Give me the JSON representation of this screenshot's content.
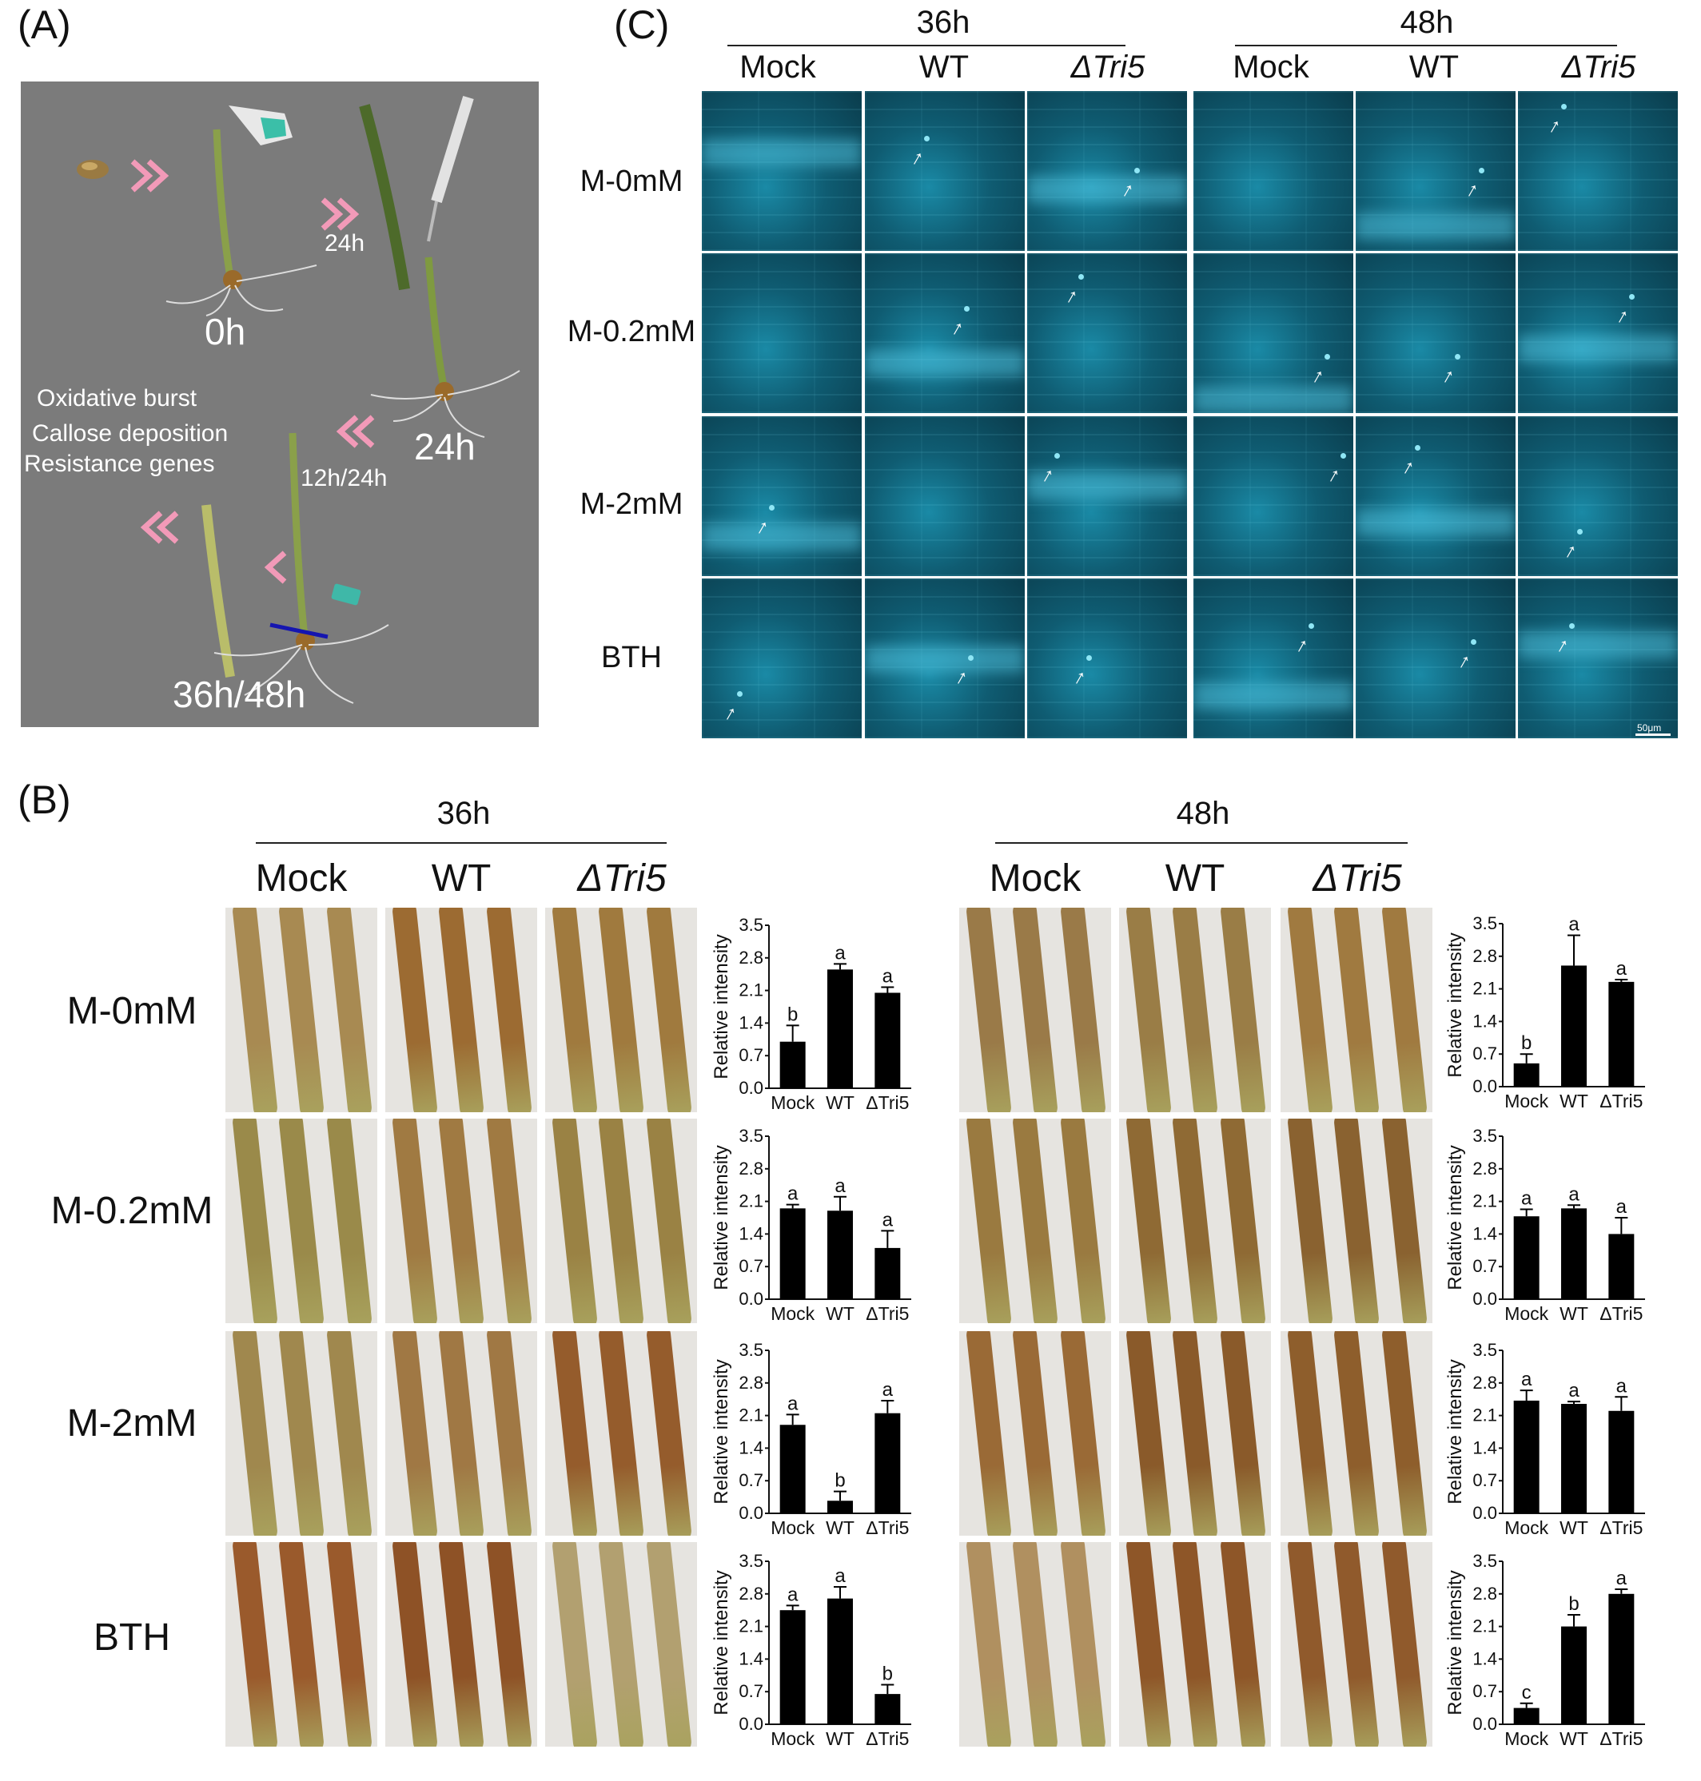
{
  "panel_labels": {
    "a": "(A)",
    "b": "(B)",
    "c": "(C)"
  },
  "panel_a": {
    "times": [
      "0h",
      "24h",
      "24h",
      "12h/24h",
      "36h/48h"
    ],
    "notes": [
      "Oxidative burst",
      "Callose deposition",
      "Resistance genes"
    ]
  },
  "panel_c": {
    "time_headers": [
      "36h",
      "48h"
    ],
    "col_headers": [
      "Mock",
      "WT",
      "ΔTri5",
      "Mock",
      "WT",
      "ΔTri5"
    ],
    "row_headers": [
      "M-0mM",
      "M-0.2mM",
      "M-2mM",
      "BTH"
    ],
    "scale_bar": "50μm"
  },
  "panel_b": {
    "time_headers": [
      "36h",
      "48h"
    ],
    "col_headers": [
      "Mock",
      "WT",
      "ΔTri5",
      "Mock",
      "WT",
      "ΔTri5"
    ],
    "row_headers": [
      "M-0mM",
      "M-0.2mM",
      "M-2mM",
      "BTH"
    ]
  },
  "chart_data": [
    {
      "type": "bar",
      "time": "36h",
      "treatment": "M-0mM",
      "categories": [
        "Mock",
        "WT",
        "ΔTri5"
      ],
      "values": [
        1.0,
        2.55,
        2.05
      ],
      "errors": [
        0.35,
        0.12,
        0.12
      ],
      "letters": [
        "b",
        "a",
        "a"
      ],
      "ylabel": "Relative intensity",
      "ylim": [
        0,
        3.5
      ],
      "yticks": [
        "0.0",
        "0.7",
        "1.4",
        "2.1",
        "2.8",
        "3.5"
      ]
    },
    {
      "type": "bar",
      "time": "48h",
      "treatment": "M-0mM",
      "categories": [
        "Mock",
        "WT",
        "ΔTri5"
      ],
      "values": [
        0.5,
        2.6,
        2.25
      ],
      "errors": [
        0.2,
        0.65,
        0.05
      ],
      "letters": [
        "b",
        "a",
        "a"
      ],
      "ylabel": "Relative intensity",
      "ylim": [
        0,
        3.5
      ],
      "yticks": [
        "0.0",
        "0.7",
        "1.4",
        "2.1",
        "2.8",
        "3.5"
      ]
    },
    {
      "type": "bar",
      "time": "36h",
      "treatment": "M-0.2mM",
      "categories": [
        "Mock",
        "WT",
        "ΔTri5"
      ],
      "values": [
        1.95,
        1.9,
        1.1
      ],
      "errors": [
        0.08,
        0.3,
        0.37
      ],
      "letters": [
        "a",
        "a",
        "a"
      ],
      "ylabel": "Relative intensity",
      "ylim": [
        0,
        3.5
      ],
      "yticks": [
        "0.0",
        "0.7",
        "1.4",
        "2.1",
        "2.8",
        "3.5"
      ]
    },
    {
      "type": "bar",
      "time": "48h",
      "treatment": "M-0.2mM",
      "categories": [
        "Mock",
        "WT",
        "ΔTri5"
      ],
      "values": [
        1.78,
        1.95,
        1.4
      ],
      "errors": [
        0.15,
        0.07,
        0.35
      ],
      "letters": [
        "a",
        "a",
        "a"
      ],
      "ylabel": "Relative intensity",
      "ylim": [
        0,
        3.5
      ],
      "yticks": [
        "0.0",
        "0.7",
        "1.4",
        "2.1",
        "2.8",
        "3.5"
      ]
    },
    {
      "type": "bar",
      "time": "36h",
      "treatment": "M-2mM",
      "categories": [
        "Mock",
        "WT",
        "ΔTri5"
      ],
      "values": [
        1.9,
        0.27,
        2.15
      ],
      "errors": [
        0.22,
        0.2,
        0.27
      ],
      "letters": [
        "a",
        "b",
        "a"
      ],
      "ylabel": "Relative intensity",
      "ylim": [
        0,
        3.5
      ],
      "yticks": [
        "0.0",
        "0.7",
        "1.4",
        "2.1",
        "2.8",
        "3.5"
      ]
    },
    {
      "type": "bar",
      "time": "48h",
      "treatment": "M-2mM",
      "categories": [
        "Mock",
        "WT",
        "ΔTri5"
      ],
      "values": [
        2.42,
        2.35,
        2.2
      ],
      "errors": [
        0.22,
        0.05,
        0.3
      ],
      "letters": [
        "a",
        "a",
        "a"
      ],
      "ylabel": "Relative intensity",
      "ylim": [
        0,
        3.5
      ],
      "yticks": [
        "0.0",
        "0.7",
        "1.4",
        "2.1",
        "2.8",
        "3.5"
      ]
    },
    {
      "type": "bar",
      "time": "36h",
      "treatment": "BTH",
      "categories": [
        "Mock",
        "WT",
        "ΔTri5"
      ],
      "values": [
        2.45,
        2.7,
        0.65
      ],
      "errors": [
        0.1,
        0.25,
        0.2
      ],
      "letters": [
        "a",
        "a",
        "b"
      ],
      "ylabel": "Relative intensity",
      "ylim": [
        0,
        3.5
      ],
      "yticks": [
        "0.0",
        "0.7",
        "1.4",
        "2.1",
        "2.8",
        "3.5"
      ]
    },
    {
      "type": "bar",
      "time": "48h",
      "treatment": "BTH",
      "categories": [
        "Mock",
        "WT",
        "ΔTri5"
      ],
      "values": [
        0.35,
        2.1,
        2.8
      ],
      "errors": [
        0.1,
        0.25,
        0.1
      ],
      "letters": [
        "c",
        "b",
        "a"
      ],
      "ylabel": "Relative intensity",
      "ylim": [
        0,
        3.5
      ],
      "yticks": [
        "0.0",
        "0.7",
        "1.4",
        "2.1",
        "2.8",
        "3.5"
      ]
    }
  ]
}
